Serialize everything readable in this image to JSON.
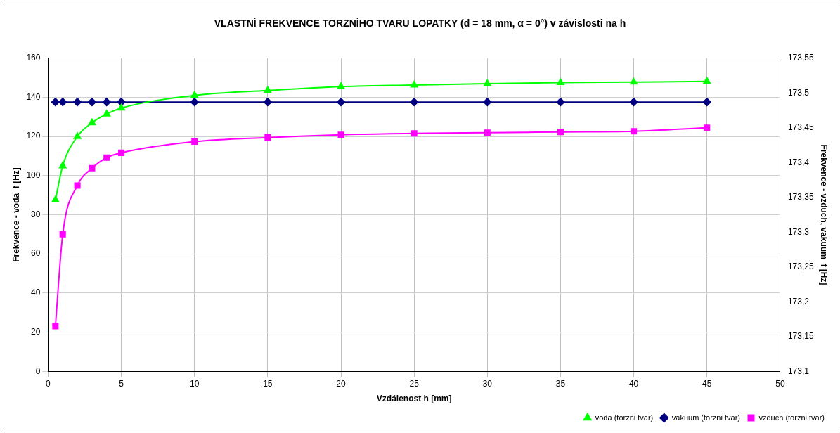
{
  "chart_data": {
    "type": "line",
    "title": "VLASTNÍ FREKVENCE TORZNÍHO TVARU LOPATKY (d = 18 mm, α = 0°) v závislosti na h",
    "xlabel": "Vzdálenost h [mm]",
    "ylabel": "Frekvence - voda  f [Hz]",
    "y2label": "Frekvence - vzduch, vakuum  f [Hz]",
    "x": [
      0.5,
      1,
      2,
      3,
      4,
      5,
      10,
      15,
      20,
      25,
      30,
      35,
      40,
      45
    ],
    "xlim": [
      0,
      50
    ],
    "xticks": [
      0,
      5,
      10,
      15,
      20,
      25,
      30,
      35,
      40,
      45,
      50
    ],
    "ylim": [
      0,
      160
    ],
    "yticks": [
      0,
      20,
      40,
      60,
      80,
      100,
      120,
      140,
      160
    ],
    "y2lim": [
      173.1,
      173.55
    ],
    "y2ticks": [
      {
        "value": 173.1,
        "label": "173,1"
      },
      {
        "value": 173.15,
        "label": "173,15"
      },
      {
        "value": 173.2,
        "label": "173,2"
      },
      {
        "value": 173.25,
        "label": "173,25"
      },
      {
        "value": 173.3,
        "label": "173,3"
      },
      {
        "value": 173.35,
        "label": "173,35"
      },
      {
        "value": 173.4,
        "label": "173,4"
      },
      {
        "value": 173.45,
        "label": "173,45"
      },
      {
        "value": 173.5,
        "label": "173,5"
      },
      {
        "value": 173.55,
        "label": "173,55"
      }
    ],
    "grid": true,
    "legend": "bottom right",
    "series": [
      {
        "name": "voda (torzni tvar)",
        "color": "#00ff00",
        "marker": "triangle",
        "values": [
          87.5,
          105,
          120,
          127,
          131.5,
          134.5,
          141,
          143.5,
          145.5,
          146.3,
          147,
          147.5,
          147.8,
          148.2
        ]
      },
      {
        "name": "vakuum (torzni tvar)",
        "color": "#000080",
        "marker": "diamond",
        "axis": "y2",
        "values": [
          173.487,
          173.487,
          173.487,
          173.487,
          173.487,
          173.487,
          173.487,
          173.487,
          173.487,
          173.487,
          173.487,
          173.487,
          173.487,
          173.487
        ]
      },
      {
        "name": "vzduch (torzni tvar)",
        "color": "#ff00ff",
        "marker": "square",
        "axis": "y2",
        "values": [
          173.165,
          173.297,
          173.367,
          173.392,
          173.407,
          173.414,
          173.43,
          173.436,
          173.44,
          173.442,
          173.443,
          173.444,
          173.445,
          173.45
        ]
      }
    ]
  }
}
